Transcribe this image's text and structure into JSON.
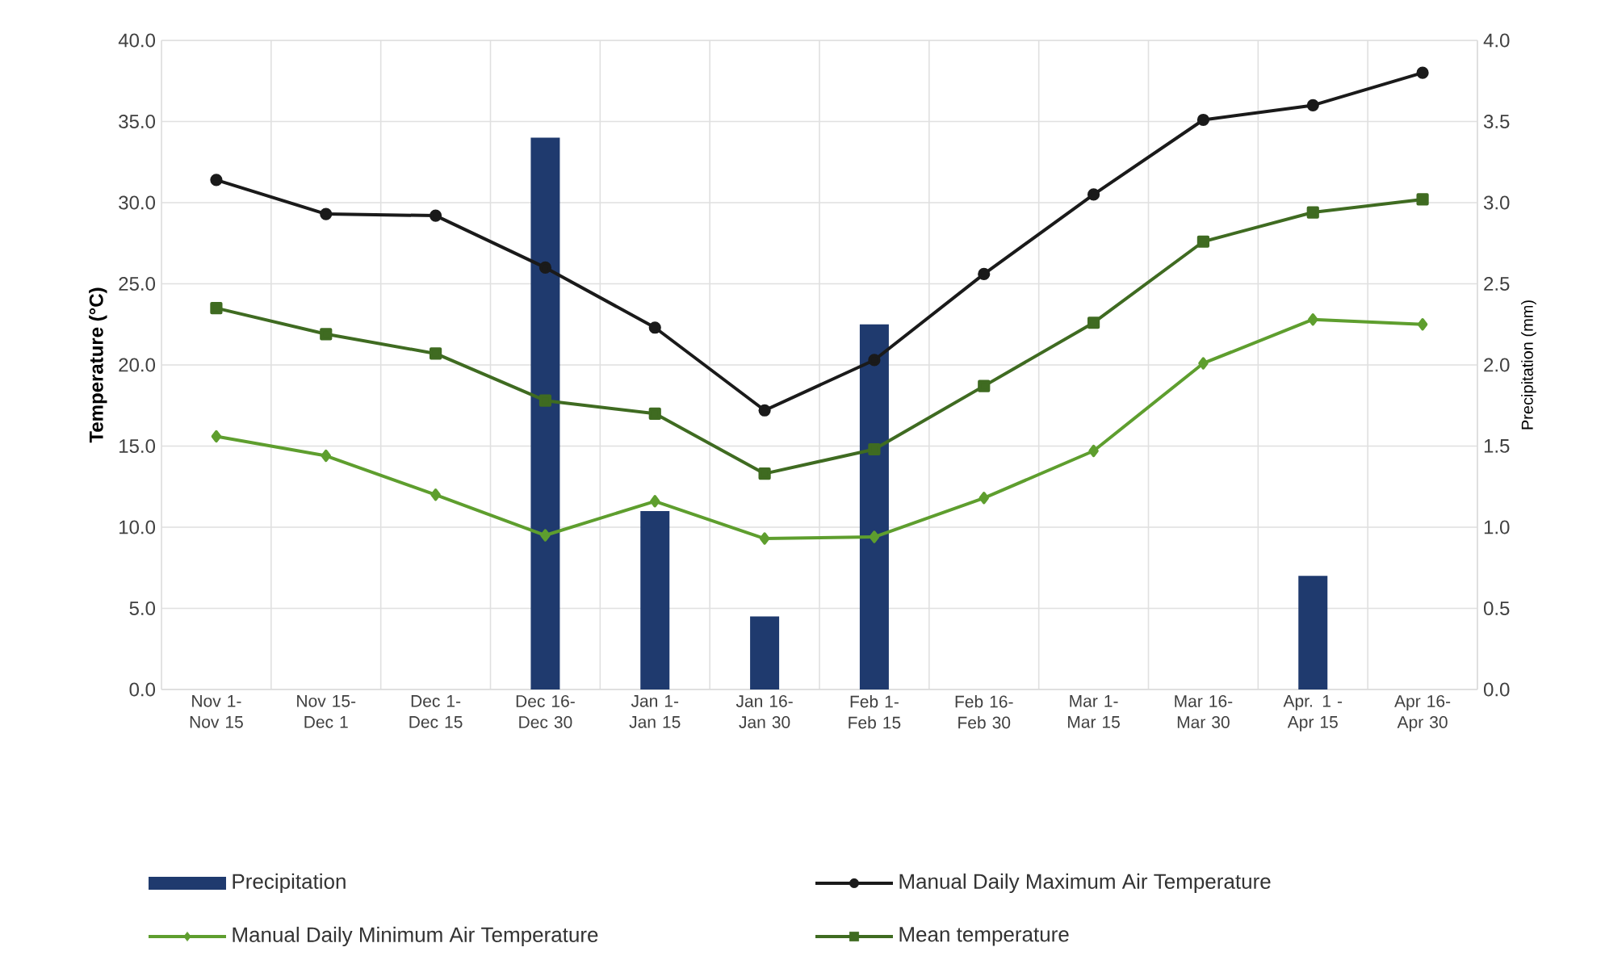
{
  "chart_data": {
    "type": "line",
    "categories": [
      "Nov 1- Nov 15",
      "Nov 15- Dec 1",
      "Dec 1- Dec 15",
      "Dec 16- Dec 30",
      "Jan 1- Jan 15",
      "Jan 16- Jan 30",
      "Feb 1- Feb 15",
      "Feb 16- Feb 30",
      "Mar 1- Mar 15",
      "Mar 16- Mar 30",
      "Apr. 1 - Apr 15",
      "Apr 16- Apr 30"
    ],
    "ylabel": "Temperature (°C)",
    "y2label": "Precipitation (mm)",
    "ylim": [
      0,
      40
    ],
    "yticks": [
      {
        "value": 0,
        "label": "0.0"
      },
      {
        "value": 5,
        "label": "5.0"
      },
      {
        "value": 10,
        "label": "10.0"
      },
      {
        "value": 15,
        "label": "15.0"
      },
      {
        "value": 20,
        "label": "20.0"
      },
      {
        "value": 25,
        "label": "25.0"
      },
      {
        "value": 30,
        "label": "30.0"
      },
      {
        "value": 35,
        "label": "35.0"
      },
      {
        "value": 40,
        "label": "40.0"
      }
    ],
    "y2lim": [
      0,
      4
    ],
    "y2ticks": [
      {
        "value": 0,
        "label": "0.0"
      },
      {
        "value": 0.5,
        "label": "0.5"
      },
      {
        "value": 1,
        "label": "1.0"
      },
      {
        "value": 1.5,
        "label": "1.5"
      },
      {
        "value": 2,
        "label": "2.0"
      },
      {
        "value": 2.5,
        "label": "2.5"
      },
      {
        "value": 3,
        "label": "3.0"
      },
      {
        "value": 3.5,
        "label": "3.5"
      },
      {
        "value": 4,
        "label": "4.0"
      }
    ],
    "grid": true,
    "legend": "bottom",
    "series": [
      {
        "name": "Precipitation",
        "type": "bar",
        "axis": "y2",
        "color": "#1f3a6e",
        "values": [
          0,
          0,
          0,
          3.4,
          1.1,
          0.45,
          2.25,
          0,
          0,
          0,
          0.7,
          0
        ]
      },
      {
        "name": "Manual Daily Maximum Air Temperature",
        "color": "#1a1a1a",
        "marker": "circle",
        "line_style": "solid",
        "values": [
          31.4,
          29.3,
          29.2,
          26.0,
          22.3,
          17.2,
          20.3,
          25.6,
          30.5,
          35.1,
          36.0,
          38.0
        ]
      },
      {
        "name": "Manual Daily Minimum Air Temperature",
        "color": "#5e9e2e",
        "marker": "diamond",
        "line_style": "solid",
        "values": [
          15.6,
          14.4,
          12.0,
          9.5,
          11.6,
          9.3,
          9.4,
          11.8,
          14.7,
          20.1,
          22.8,
          22.5
        ]
      },
      {
        "name": "Mean temperature",
        "color": "#3f6b21",
        "marker": "square",
        "line_style": "solid",
        "values": [
          23.5,
          21.9,
          20.7,
          17.8,
          17.0,
          13.3,
          14.8,
          18.7,
          22.6,
          27.6,
          29.4,
          30.2
        ]
      }
    ]
  }
}
